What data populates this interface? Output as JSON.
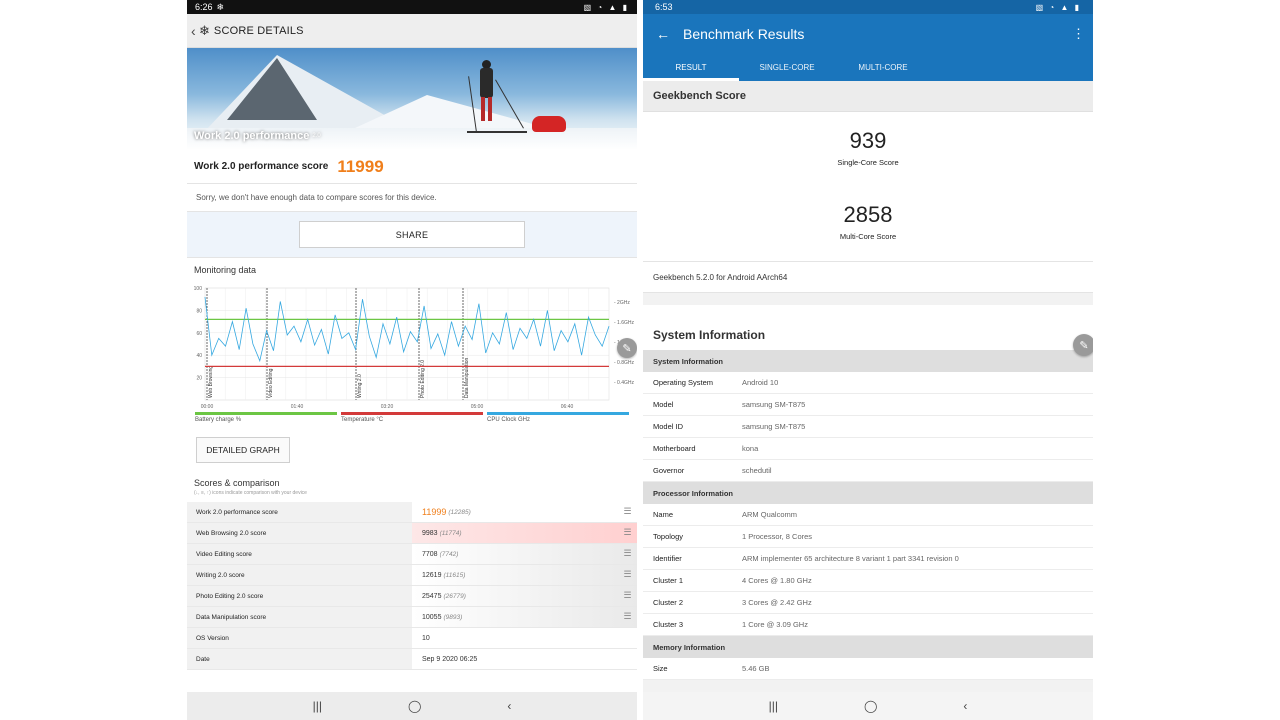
{
  "left": {
    "status": {
      "time": "6:26",
      "icon": "snowflake-icon",
      "right_icons": "▧ ◔ ▲ ▮"
    },
    "appbar": {
      "title": "SCORE DETAILS"
    },
    "hero": {
      "caption": "Work 2.0 performance",
      "version": "2.0"
    },
    "score": {
      "label": "Work 2.0 performance score",
      "value": "11999"
    },
    "notice": "Sorry, we don't have enough data to compare scores for this device.",
    "share_label": "SHARE",
    "monitoring_title": "Monitoring data",
    "chart_data": {
      "type": "line",
      "left_axis": {
        "ticks": [
          "100",
          "80",
          "60",
          "40",
          "20"
        ],
        "ylim": [
          0,
          100
        ]
      },
      "right_axis": {
        "ticks": [
          "2GHz",
          "1.6GHz",
          "1.2GHz",
          "0.8GHz",
          "0.4GHz"
        ]
      },
      "x_ticks": [
        "00:00",
        "01:40",
        "03:20",
        "05:00",
        "06:40"
      ],
      "phase_labels": [
        "Web Browsing",
        "Video Editing",
        "Writing 2.0",
        "Photo Editing 2.0",
        "Data Manipulation"
      ],
      "series": [
        {
          "name": "Battery charge %",
          "color": "#6cc644",
          "values": [
            72,
            72,
            72,
            72,
            72,
            72,
            72,
            72,
            72,
            72
          ]
        },
        {
          "name": "Temperature °C",
          "color": "#d33a3a",
          "values": [
            30,
            30,
            30,
            30,
            30,
            30,
            30,
            30,
            30,
            30
          ]
        },
        {
          "name": "CPU Clock GHz",
          "color": "#35a8e0",
          "values": [
            92,
            40,
            55,
            48,
            70,
            45,
            82,
            50,
            35,
            62,
            44,
            88,
            58,
            66,
            52,
            72,
            49,
            63,
            41,
            76,
            55,
            60,
            45,
            90,
            57,
            38,
            68,
            50,
            74,
            43,
            61,
            52,
            84,
            46,
            59,
            40,
            70,
            48,
            66,
            54,
            86,
            42,
            60,
            50,
            78,
            45,
            64,
            55,
            72,
            48,
            80,
            44,
            62,
            52,
            68,
            40,
            74,
            58,
            48,
            66
          ]
        }
      ]
    },
    "legend": [
      {
        "label": "Battery charge %",
        "color": "#6cc644"
      },
      {
        "label": "Temperature °C",
        "color": "#d33a3a"
      },
      {
        "label": "CPU Clock GHz",
        "color": "#35a8e0"
      }
    ],
    "detailed_graph_label": "DETAILED GRAPH",
    "scores_title": "Scores & comparison",
    "scores_subtitle": "(↓, ≡, ↑) icons indicate comparison with your device",
    "score_rows": [
      {
        "name": "Work 2.0 performance score",
        "score": "11999",
        "other": "(12285)",
        "style": "first",
        "menu": true
      },
      {
        "name": "Web Browsing 2.0 score",
        "score": "9983",
        "other": "(11774)",
        "style": "pink",
        "menu": true
      },
      {
        "name": "Video Editing score",
        "score": "7708",
        "other": "(7742)",
        "style": "grey",
        "menu": true
      },
      {
        "name": "Writing 2.0 score",
        "score": "12619",
        "other": "(11615)",
        "style": "grey",
        "menu": true
      },
      {
        "name": "Photo Editing 2.0 score",
        "score": "25475",
        "other": "(26779)",
        "style": "grey",
        "menu": true
      },
      {
        "name": "Data Manipulation score",
        "score": "10055",
        "other": "(9893)",
        "style": "grey",
        "menu": true
      },
      {
        "name": "OS Version",
        "score": "10",
        "other": "",
        "style": "plain",
        "menu": false
      },
      {
        "name": "Date",
        "score": "Sep 9 2020 06:25",
        "other": "",
        "style": "plain",
        "menu": false
      }
    ],
    "nav": {
      "recents": "|||",
      "home": "◯",
      "back": "‹"
    }
  },
  "right": {
    "status": {
      "time": "6:53",
      "right_icons": "▧ ◔ ▲ ▮"
    },
    "appbar": {
      "title": "Benchmark Results",
      "back_icon": "arrow-left-icon",
      "more_icon": "more-vert-icon"
    },
    "tabs": [
      "RESULT",
      "SINGLE-CORE",
      "MULTI-CORE"
    ],
    "geekbench_title": "Geekbench Score",
    "single_core": {
      "value": "939",
      "label": "Single-Core Score"
    },
    "multi_core": {
      "value": "2858",
      "label": "Multi-Core Score"
    },
    "version": "Geekbench 5.2.0 for Android AArch64",
    "system_info_title": "System Information",
    "sections": [
      {
        "header": "System Information",
        "rows": [
          {
            "k": "Operating System",
            "v": "Android 10"
          },
          {
            "k": "Model",
            "v": "samsung SM-T875"
          },
          {
            "k": "Model ID",
            "v": "samsung SM-T875"
          },
          {
            "k": "Motherboard",
            "v": "kona"
          },
          {
            "k": "Governor",
            "v": "schedutil"
          }
        ]
      },
      {
        "header": "Processor Information",
        "rows": [
          {
            "k": "Name",
            "v": "ARM Qualcomm"
          },
          {
            "k": "Topology",
            "v": "1 Processor, 8 Cores"
          },
          {
            "k": "Identifier",
            "v": "ARM implementer 65 architecture 8 variant 1 part 3341 revision 0"
          },
          {
            "k": "Cluster 1",
            "v": "4 Cores @ 1.80 GHz"
          },
          {
            "k": "Cluster 2",
            "v": "3 Cores @ 2.42 GHz"
          },
          {
            "k": "Cluster 3",
            "v": "1 Core @ 3.09 GHz"
          }
        ]
      },
      {
        "header": "Memory Information",
        "rows": [
          {
            "k": "Size",
            "v": "5.46 GB"
          }
        ]
      }
    ],
    "nav": {
      "recents": "|||",
      "home": "◯",
      "back": "‹"
    }
  }
}
